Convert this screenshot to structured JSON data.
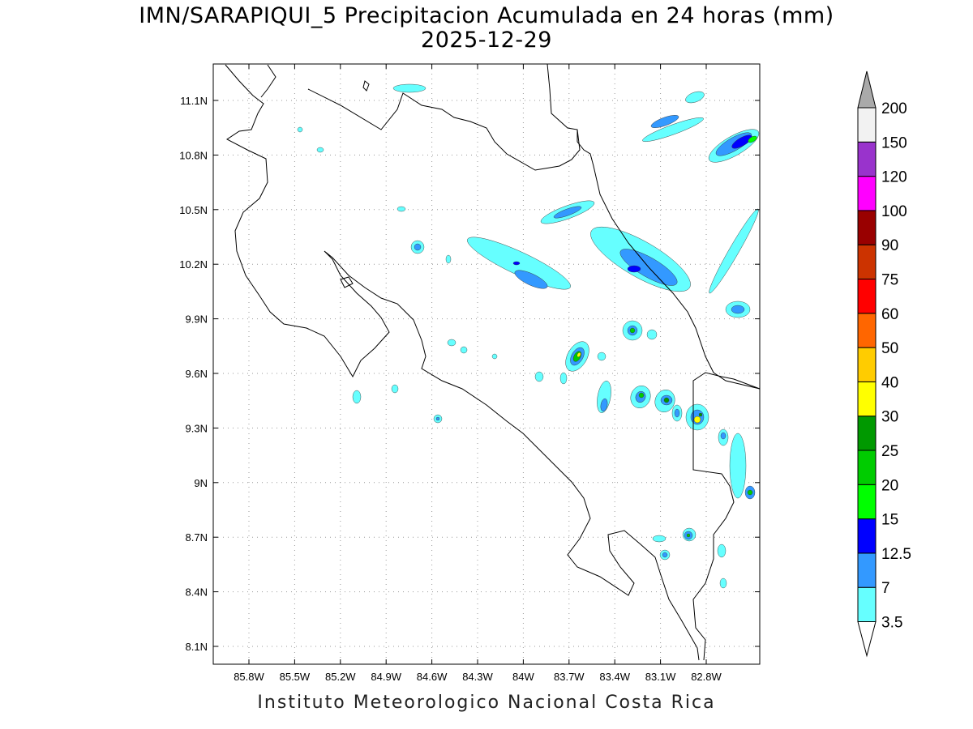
{
  "title": {
    "line1": "IMN/SARAPIQUI_5 Precipitacion Acumulada en 24 horas (mm)",
    "line2": "2025-12-29"
  },
  "footer": "Instituto Meteorologico Nacional Costa Rica",
  "map": {
    "lat_ticks": [
      "11.1N",
      "10.8N",
      "10.5N",
      "10.2N",
      "9.9N",
      "9.6N",
      "9.3N",
      "9N",
      "8.7N",
      "8.4N",
      "8.1N"
    ],
    "lon_ticks": [
      "85.8W",
      "85.5W",
      "85.2W",
      "84.9W",
      "84.6W",
      "84.3W",
      "84W",
      "83.7W",
      "83.4W",
      "83.1W",
      "82.8W"
    ]
  },
  "legend": {
    "levels": [
      "3.5",
      "7",
      "12.5",
      "15",
      "20",
      "25",
      "30",
      "40",
      "50",
      "60",
      "75",
      "90",
      "100",
      "120",
      "150",
      "200"
    ],
    "colors": [
      "#66ffff",
      "#3399ff",
      "#0000ff",
      "#00ff00",
      "#00cc00",
      "#009900",
      "#ffff00",
      "#ffcc00",
      "#ff6600",
      "#ff0000",
      "#cc3300",
      "#990000",
      "#ff00ff",
      "#9933cc",
      "#f2f2f2"
    ],
    "over_color": "#aaaaaa",
    "under_color": "#ffffff"
  }
}
